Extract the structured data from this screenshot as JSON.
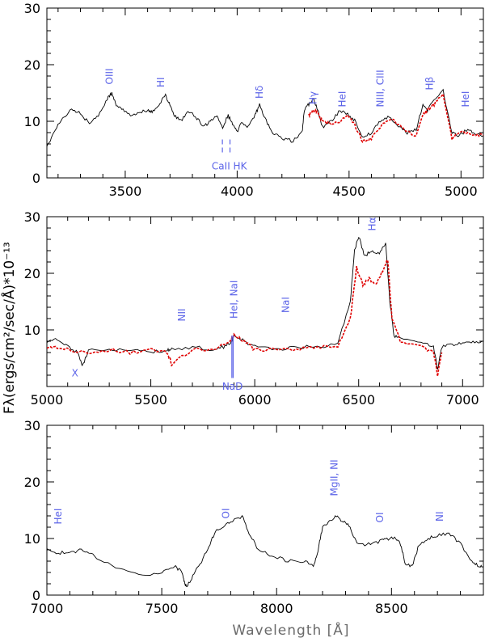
{
  "figure": {
    "xlabel": "Wavelength [Å]",
    "ylabel": "Fλ(ergs/cm²/sec/Å)*10⁻¹³"
  },
  "colors": {
    "black_series": "#000000",
    "red_series": "#e00000",
    "annotation": "#5b63e8",
    "axis": "#000000"
  },
  "chart_data": [
    {
      "type": "line",
      "title": "",
      "xlim": [
        3150,
        5100
      ],
      "ylim": [
        0,
        30
      ],
      "xticks": [
        3500,
        4000,
        4500,
        5000
      ],
      "yticks": [
        0,
        10,
        20,
        30
      ],
      "series": [
        {
          "name": "black",
          "color": "#000000",
          "x": [
            3150,
            3180,
            3220,
            3260,
            3300,
            3340,
            3380,
            3420,
            3440,
            3460,
            3490,
            3530,
            3560,
            3600,
            3620,
            3650,
            3680,
            3700,
            3720,
            3750,
            3780,
            3820,
            3850,
            3880,
            3910,
            3935,
            3960,
            3980,
            4000,
            4020,
            4050,
            4080,
            4100,
            4130,
            4160,
            4200,
            4250,
            4290,
            4300,
            4320,
            4340,
            4360,
            4380,
            4420,
            4460,
            4500,
            4530,
            4560,
            4600,
            4640,
            4680,
            4720,
            4760,
            4800,
            4830,
            4850,
            4880,
            4920,
            4960,
            4990,
            5030,
            5060,
            5100
          ],
          "y": [
            5.5,
            8,
            10.5,
            12,
            11.5,
            9.5,
            11,
            14,
            15,
            13,
            12,
            11,
            11.5,
            12,
            11.5,
            13,
            14.5,
            13,
            11,
            10,
            12,
            10.5,
            9,
            10,
            11,
            9,
            11,
            9.5,
            8,
            10,
            9,
            11,
            13,
            10,
            8,
            7,
            6.5,
            8,
            12,
            13,
            14,
            12,
            9,
            10,
            12,
            11,
            10,
            7,
            8,
            10,
            11,
            9,
            8,
            8.5,
            13,
            12,
            14,
            15.5,
            8,
            7.5,
            8.5,
            8,
            7.5
          ]
        },
        {
          "name": "red",
          "color": "#e00000",
          "x": [
            4320,
            4340,
            4360,
            4380,
            4420,
            4460,
            4500,
            4530,
            4560,
            4600,
            4640,
            4680,
            4720,
            4760,
            4800,
            4830,
            4850,
            4880,
            4920,
            4960,
            4990,
            5030,
            5060,
            5100
          ],
          "y": [
            11,
            12,
            11.5,
            10,
            9.5,
            10,
            11,
            9,
            6.5,
            7,
            9,
            10.5,
            9.5,
            8,
            7.5,
            11,
            12,
            13,
            15,
            7,
            8,
            8,
            7.5,
            7.5
          ]
        }
      ],
      "annotations": [
        {
          "text": "OIII",
          "x": 3430,
          "y": 16.5,
          "rotate": true
        },
        {
          "text": "HI",
          "x": 3660,
          "y": 16,
          "rotate": true
        },
        {
          "text": "Hδ",
          "x": 4100,
          "y": 14,
          "rotate": true
        },
        {
          "text": "Hγ",
          "x": 4340,
          "y": 13,
          "rotate": true
        },
        {
          "text": "HeI",
          "x": 4470,
          "y": 12.5,
          "rotate": true
        },
        {
          "text": "NIII, CIII",
          "x": 4640,
          "y": 12.5,
          "rotate": true
        },
        {
          "text": "Hβ",
          "x": 4860,
          "y": 15.5,
          "rotate": true
        },
        {
          "text": "HeI",
          "x": 5020,
          "y": 12.5,
          "rotate": true
        },
        {
          "text": "CaII HK",
          "x": 3965,
          "y": 1.5,
          "rotate": false
        }
      ],
      "markers": [
        {
          "x": 3934,
          "y0": 4.5,
          "y1": 7
        },
        {
          "x": 3968,
          "y0": 4.5,
          "y1": 7
        }
      ]
    },
    {
      "type": "line",
      "title": "",
      "xlim": [
        5000,
        7100
      ],
      "ylim": [
        0,
        30
      ],
      "xticks": [
        5000,
        5500,
        6000,
        6500,
        7000
      ],
      "yticks": [
        10,
        20,
        30
      ],
      "series": [
        {
          "name": "black",
          "color": "#000000",
          "x": [
            5000,
            5050,
            5100,
            5150,
            5170,
            5200,
            5300,
            5400,
            5500,
            5580,
            5600,
            5700,
            5800,
            5850,
            5890,
            5900,
            5950,
            6000,
            6100,
            6200,
            6300,
            6400,
            6460,
            6480,
            6500,
            6530,
            6560,
            6600,
            6630,
            6650,
            6670,
            6700,
            6800,
            6860,
            6880,
            6900,
            6950,
            7000,
            7050,
            7100
          ],
          "y": [
            8,
            8.5,
            7,
            6,
            3.5,
            6.5,
            6.5,
            6.5,
            6,
            6.5,
            6.5,
            7,
            6.5,
            7,
            8,
            9,
            8,
            7,
            6.5,
            7,
            7,
            7.5,
            15,
            24,
            26.5,
            23,
            24,
            23.5,
            25.5,
            15,
            9,
            8.5,
            8,
            7,
            3,
            7,
            7.5,
            7.5,
            8,
            8
          ]
        },
        {
          "name": "red",
          "color": "#e00000",
          "x": [
            5000,
            5050,
            5100,
            5200,
            5300,
            5400,
            5500,
            5580,
            5600,
            5700,
            5800,
            5880,
            5900,
            5950,
            6000,
            6100,
            6200,
            6300,
            6400,
            6460,
            6490,
            6520,
            6550,
            6580,
            6610,
            6640,
            6660,
            6700,
            6800,
            6860,
            6880,
            6900
          ],
          "y": [
            7,
            7,
            6.5,
            6,
            6.5,
            6,
            6.5,
            6,
            4,
            6.5,
            6.5,
            8,
            9,
            8,
            6.5,
            6.5,
            6.5,
            7,
            7,
            12,
            21,
            18,
            19,
            18,
            20,
            22.5,
            12,
            8,
            7,
            6,
            2,
            6
          ]
        }
      ],
      "annotations": [
        {
          "text": "NII",
          "x": 5650,
          "y": 11.5,
          "rotate": true
        },
        {
          "text": "HeI, NaI",
          "x": 5900,
          "y": 12,
          "rotate": true
        },
        {
          "text": "NaI",
          "x": 6150,
          "y": 13,
          "rotate": true
        },
        {
          "text": "Hα",
          "x": 6565,
          "y": 27.5,
          "rotate": true
        },
        {
          "text": "X",
          "x": 5135,
          "y": 1.8,
          "rotate": false
        },
        {
          "text": "NaD",
          "x": 5893,
          "y": -0.6,
          "rotate": false
        }
      ],
      "markers": [
        {
          "x": 5890,
          "y0": 1.5,
          "y1": 9,
          "solid": true
        },
        {
          "x": 5896,
          "y0": 1.5,
          "y1": 9,
          "solid": true
        }
      ]
    },
    {
      "type": "line",
      "title": "",
      "xlim": [
        7000,
        8900
      ],
      "ylim": [
        0,
        30
      ],
      "xticks": [
        7000,
        7500,
        8000,
        8500
      ],
      "yticks": [
        0,
        10,
        20,
        30
      ],
      "series": [
        {
          "name": "black",
          "color": "#000000",
          "x": [
            7000,
            7050,
            7100,
            7150,
            7200,
            7300,
            7400,
            7500,
            7560,
            7590,
            7600,
            7610,
            7630,
            7660,
            7700,
            7730,
            7760,
            7800,
            7850,
            7880,
            7920,
            7980,
            8050,
            8120,
            8160,
            8180,
            8200,
            8230,
            8260,
            8290,
            8320,
            8350,
            8400,
            8450,
            8480,
            8520,
            8540,
            8560,
            8590,
            8620,
            8660,
            8700,
            8750,
            8800,
            8850,
            8880,
            8900
          ],
          "y": [
            8,
            7.5,
            7.5,
            8,
            7,
            5,
            3.5,
            4,
            5,
            4,
            2,
            1.5,
            3,
            5,
            8,
            11,
            12,
            13,
            14,
            11,
            8,
            7,
            6,
            6,
            5,
            8,
            12,
            13,
            14,
            13,
            12,
            9,
            9,
            9.5,
            10,
            10,
            9,
            5.5,
            5,
            9,
            10,
            10.5,
            11,
            9,
            6,
            5,
            5
          ]
        }
      ],
      "annotations": [
        {
          "text": "HeI",
          "x": 7050,
          "y": 12.5,
          "rotate": true
        },
        {
          "text": "OI",
          "x": 7780,
          "y": 13.5,
          "rotate": true
        },
        {
          "text": "MgII, NI",
          "x": 8250,
          "y": 17.5,
          "rotate": true
        },
        {
          "text": "OI",
          "x": 8450,
          "y": 12.8,
          "rotate": true
        },
        {
          "text": "NI",
          "x": 8710,
          "y": 13,
          "rotate": true
        }
      ],
      "markers": []
    }
  ]
}
